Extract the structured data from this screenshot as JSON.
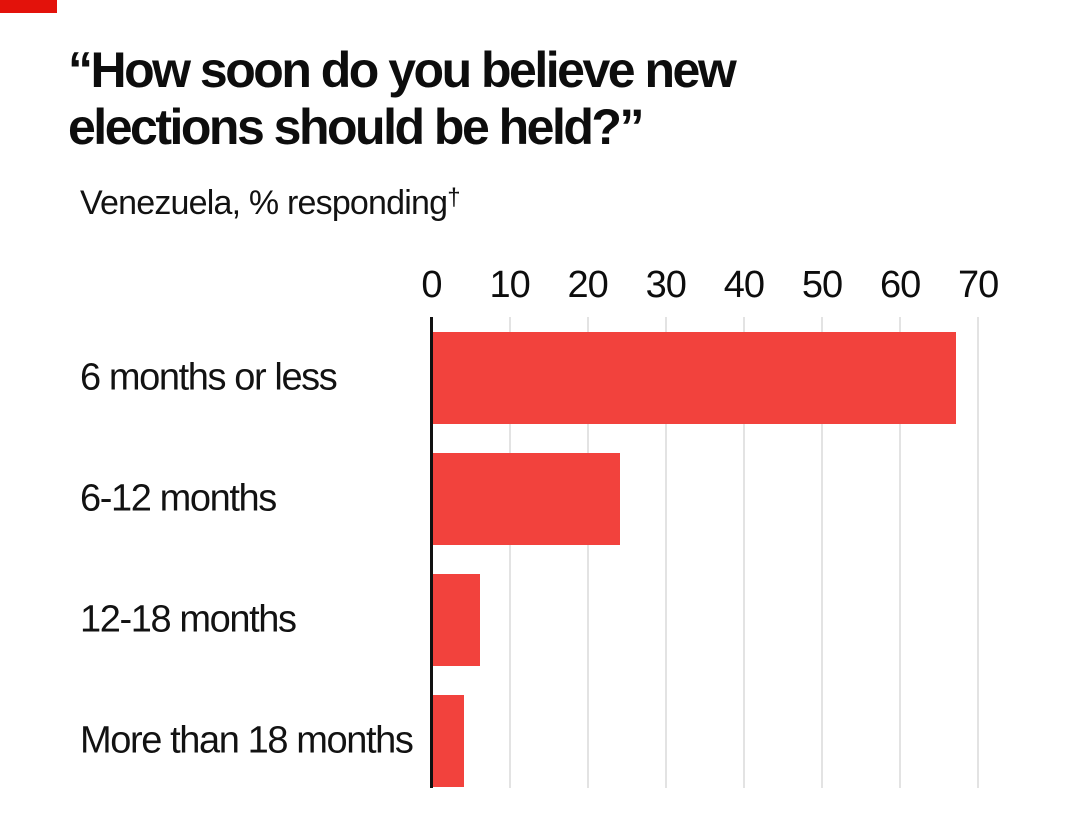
{
  "brand": {
    "tab_color": "#E3120B"
  },
  "header": {
    "title_lines": [
      "“How soon do you believe new",
      "elections should be held?”"
    ],
    "subtitle": "Venezuela, % responding",
    "footnote_marker": "†"
  },
  "chart_data": {
    "type": "bar",
    "orientation": "horizontal",
    "title": "“How soon do you believe new elections should be held?”",
    "subtitle": "Venezuela, % responding†",
    "categories": [
      "6 months or less",
      "6-12 months",
      "12-18 months",
      "More than 18 months"
    ],
    "values": [
      67,
      24,
      6,
      4
    ],
    "unit": "%",
    "xlim": [
      0,
      70
    ],
    "ticks": [
      0,
      10,
      20,
      30,
      40,
      50,
      60,
      70
    ],
    "tick_position": "top",
    "grid": "vertical",
    "legend": "none",
    "bar_color": "#F2423D",
    "gridline_color": "#E3E3E3",
    "axis_color": "#111111"
  }
}
